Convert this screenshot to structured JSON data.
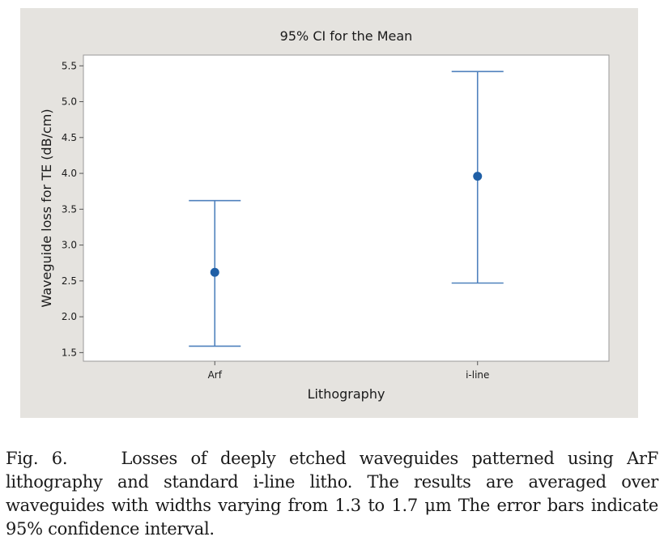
{
  "chart_data": {
    "type": "errorbar",
    "title": "95% CI for the Mean",
    "xlabel": "Lithography",
    "ylabel": "Waveguide loss for TE (dB/cm)",
    "categories": [
      "Arf",
      "i-line"
    ],
    "means": [
      2.62,
      3.96
    ],
    "ci_low": [
      1.59,
      2.47
    ],
    "ci_high": [
      3.62,
      5.42
    ],
    "ylim": [
      1.38,
      5.65
    ],
    "yticks": [
      1.5,
      2.0,
      2.5,
      3.0,
      3.5,
      4.0,
      4.5,
      5.0,
      5.5
    ],
    "grid": false,
    "colors": {
      "background": "#e5e3df",
      "plot_area": "#ffffff",
      "error_bar": "#4f81bd",
      "point": "#1f5fa6"
    }
  },
  "caption": {
    "label": "Fig. 6.",
    "text": "Losses of deeply etched waveguides patterned using ArF lithography and standard i-line litho. The results are averaged over waveguides with widths varying from 1.3 to 1.7 μm The error bars indicate 95% confidence interval."
  }
}
